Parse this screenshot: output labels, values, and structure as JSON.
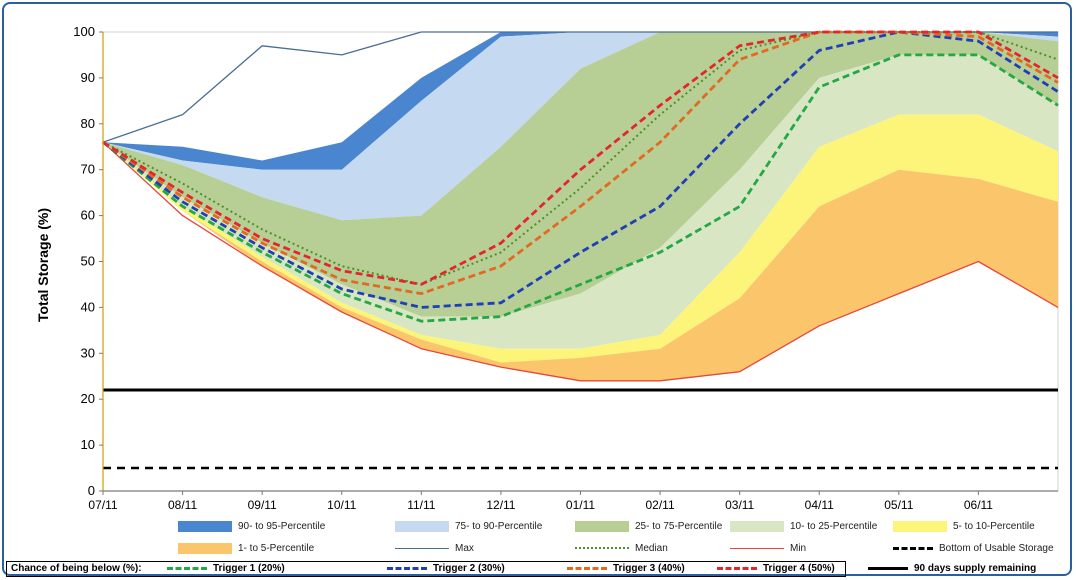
{
  "title": "",
  "chart_data": {
    "type": "area",
    "ylabel": "Total Storage (%)",
    "xlabel": "",
    "ylim": [
      0,
      100
    ],
    "yticks": [
      0,
      10,
      20,
      30,
      40,
      50,
      60,
      70,
      80,
      90,
      100
    ],
    "x": [
      "07/11",
      "08/11",
      "09/11",
      "10/11",
      "11/11",
      "12/11",
      "01/11",
      "02/11",
      "03/11",
      "04/11",
      "05/11",
      "06/11",
      "07/11"
    ],
    "xticks": [
      "07/11",
      "08/11",
      "09/11",
      "10/11",
      "11/11",
      "12/11",
      "01/11",
      "02/11",
      "03/11",
      "04/11",
      "05/11",
      "06/11"
    ],
    "grid": false,
    "legend_placement": "bottom",
    "bands": [
      {
        "name": "90- to 95-Percentile",
        "color": "#4a86cf",
        "lower": [
          76,
          72,
          70,
          70,
          85,
          99,
          100,
          100,
          100,
          100,
          100,
          100,
          99
        ],
        "upper": [
          76,
          75,
          72,
          76,
          90,
          100,
          100,
          100,
          100,
          100,
          100,
          100,
          100
        ]
      },
      {
        "name": "75- to 90-Percentile",
        "color": "#c5d9f0",
        "lower": [
          76,
          71,
          64,
          59,
          60,
          75,
          92,
          100,
          100,
          100,
          100,
          100,
          98
        ],
        "upper": [
          76,
          72,
          70,
          70,
          85,
          99,
          100,
          100,
          100,
          100,
          100,
          100,
          99
        ]
      },
      {
        "name": "25- to 75-Percentile",
        "color": "#b7cf95",
        "lower": [
          76,
          64,
          54,
          45,
          38,
          38,
          43,
          53,
          70,
          90,
          95,
          95,
          84
        ],
        "upper": [
          76,
          71,
          64,
          59,
          60,
          75,
          92,
          100,
          100,
          100,
          100,
          100,
          98
        ]
      },
      {
        "name": "10- to 25-Percentile",
        "color": "#d9e6c3",
        "lower": [
          76,
          62,
          51,
          41,
          34,
          31,
          31,
          34,
          52,
          75,
          82,
          82,
          74
        ],
        "upper": [
          76,
          64,
          54,
          45,
          38,
          38,
          43,
          53,
          70,
          90,
          95,
          95,
          84
        ]
      },
      {
        "name": "5- to 10-Percentile",
        "color": "#fdf47a",
        "lower": [
          76,
          61,
          50,
          40,
          33,
          28,
          29,
          31,
          42,
          62,
          70,
          68,
          63
        ],
        "upper": [
          76,
          62,
          51,
          41,
          34,
          31,
          31,
          34,
          52,
          75,
          82,
          82,
          74
        ]
      },
      {
        "name": "1- to 5-Percentile",
        "color": "#fbc66b",
        "lower": [
          76,
          61,
          49,
          39,
          31,
          27,
          24,
          24,
          26,
          36,
          43,
          50,
          40
        ],
        "upper": [
          76,
          61,
          50,
          40,
          33,
          28,
          29,
          31,
          42,
          62,
          70,
          68,
          63
        ]
      }
    ],
    "series": [
      {
        "name": "Max",
        "color": "#4a6d96",
        "style": "solid",
        "values": [
          76,
          82,
          97,
          95,
          100,
          100,
          100,
          100,
          100,
          100,
          100,
          100,
          100
        ]
      },
      {
        "name": "Median",
        "color": "#4e8f2a",
        "style": "dotted",
        "values": [
          76,
          67,
          57,
          49,
          45,
          52,
          66,
          82,
          96,
          100,
          100,
          100,
          94
        ]
      },
      {
        "name": "Min",
        "color": "#e8463c",
        "style": "solid",
        "values": [
          76,
          60,
          49,
          39,
          31,
          27,
          24,
          24,
          26,
          36,
          43,
          50,
          40
        ]
      },
      {
        "name": "Trigger 1 (20%)",
        "color": "#23a845",
        "style": "dashed",
        "values": [
          76,
          62,
          52,
          43,
          37,
          38,
          45,
          52,
          62,
          88,
          95,
          95,
          84
        ]
      },
      {
        "name": "Trigger 2 (30%)",
        "color": "#1f3fb8",
        "style": "dashed",
        "values": [
          76,
          63,
          53,
          44,
          40,
          41,
          52,
          62,
          80,
          96,
          100,
          98,
          87
        ]
      },
      {
        "name": "Trigger 3 (40%)",
        "color": "#e2691f",
        "style": "dashed",
        "values": [
          76,
          64,
          54,
          46,
          43,
          49,
          62,
          76,
          94,
          100,
          100,
          99,
          89
        ]
      },
      {
        "name": "Trigger 4 (50%)",
        "color": "#e3262b",
        "style": "dashed",
        "values": [
          76,
          65,
          55,
          48,
          45,
          54,
          70,
          84,
          97,
          100,
          100,
          100,
          90
        ]
      }
    ],
    "hlines": [
      {
        "name": "90 days supply remaining",
        "value": 22,
        "color": "#000000",
        "style": "solid"
      },
      {
        "name": "Bottom of Usable Storage",
        "value": 5,
        "color": "#000000",
        "style": "dashed"
      }
    ]
  },
  "legend_row1": [
    "90- to 95-Percentile",
    "75- to 90-Percentile",
    "25- to 75-Percentile",
    "10- to 25-Percentile",
    "5- to 10-Percentile"
  ],
  "legend_row2": [
    "1- to 5-Percentile",
    "Max",
    "Median",
    "Min",
    "Bottom of Usable Storage"
  ],
  "trigger_row": {
    "title": "Chance of being below (%):",
    "items": [
      "Trigger 1 (20%)",
      "Trigger 2 (30%)",
      "Trigger 3 (40%)",
      "Trigger 4 (50%)"
    ],
    "supply": "90 days supply remaining"
  }
}
